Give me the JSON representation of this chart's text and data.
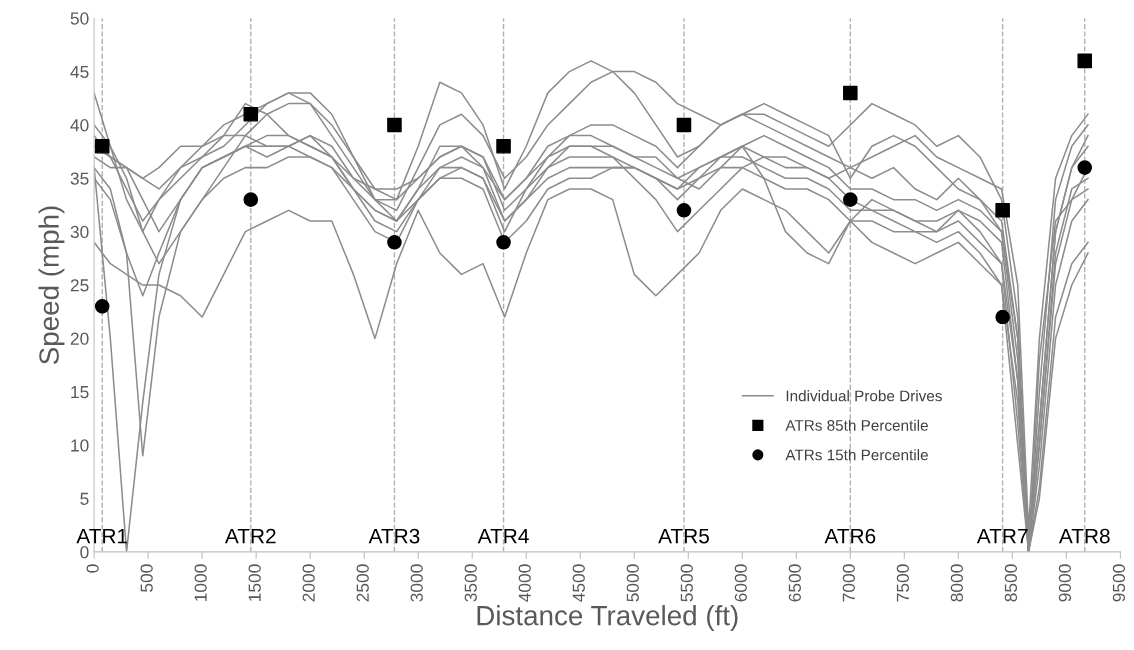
{
  "chart_data": {
    "type": "line",
    "xlabel": "Distance Traveled (ft)",
    "ylabel": "Speed (mph)",
    "x": [
      0,
      150,
      300,
      450,
      600,
      800,
      1000,
      1200,
      1400,
      1600,
      1800,
      2000,
      2200,
      2400,
      2600,
      2800,
      3000,
      3200,
      3400,
      3600,
      3800,
      4000,
      4200,
      4400,
      4600,
      4800,
      5000,
      5200,
      5400,
      5600,
      5800,
      6000,
      6200,
      6400,
      6600,
      6800,
      7000,
      7200,
      7400,
      7600,
      7800,
      8000,
      8200,
      8400,
      8550,
      8650,
      8750,
      8900,
      9050,
      9200
    ],
    "series": [
      {
        "name": "Individual Probe Drives",
        "color": "#8c8c8c",
        "values": [
          43,
          38,
          33,
          30,
          33,
          36,
          38,
          40,
          41,
          42,
          43,
          43,
          41,
          37,
          34,
          33,
          38,
          44,
          43,
          40,
          34,
          38,
          43,
          45,
          46,
          45,
          43,
          40,
          37,
          38,
          40,
          41,
          40,
          39,
          38,
          37,
          36,
          37,
          38,
          39,
          37,
          36,
          35,
          34,
          25,
          2,
          20,
          35,
          39,
          41
        ]
      },
      {
        "color": "#8c8c8c",
        "values": [
          39,
          37,
          36,
          35,
          34,
          36,
          37,
          38,
          40,
          42,
          43,
          42,
          39,
          36,
          33,
          32,
          36,
          40,
          41,
          39,
          35,
          37,
          40,
          42,
          44,
          45,
          45,
          44,
          42,
          41,
          40,
          41,
          41,
          40,
          39,
          38,
          40,
          42,
          41,
          40,
          38,
          39,
          37,
          33,
          22,
          0,
          15,
          33,
          38,
          40
        ]
      },
      {
        "color": "#8c8c8c",
        "values": [
          38,
          37,
          34,
          31,
          33,
          35,
          37,
          39,
          42,
          41,
          39,
          38,
          37,
          35,
          33,
          33,
          35,
          37,
          38,
          37,
          32,
          34,
          37,
          39,
          40,
          40,
          39,
          38,
          36,
          38,
          40,
          41,
          42,
          41,
          40,
          39,
          35,
          38,
          39,
          38,
          36,
          34,
          33,
          31,
          20,
          1,
          12,
          30,
          36,
          38
        ]
      },
      {
        "color": "#8c8c8c",
        "values": [
          37,
          36,
          36,
          35,
          36,
          38,
          38,
          39,
          39,
          38,
          38,
          39,
          37,
          34,
          32,
          31,
          34,
          36,
          36,
          35,
          31,
          33,
          36,
          38,
          38,
          38,
          37,
          37,
          35,
          34,
          36,
          38,
          39,
          38,
          37,
          36,
          34,
          34,
          33,
          33,
          32,
          33,
          32,
          30,
          18,
          0,
          10,
          28,
          34,
          35
        ]
      },
      {
        "color": "#8c8c8c",
        "values": [
          36,
          34,
          28,
          24,
          28,
          33,
          36,
          37,
          38,
          37,
          38,
          39,
          38,
          35,
          34,
          34,
          35,
          37,
          38,
          36,
          33,
          35,
          38,
          39,
          39,
          38,
          37,
          36,
          35,
          36,
          37,
          38,
          37,
          36,
          36,
          35,
          33,
          32,
          32,
          31,
          31,
          32,
          30,
          27,
          16,
          0,
          18,
          31,
          33,
          34
        ]
      },
      {
        "color": "#8c8c8c",
        "values": [
          36,
          20,
          0,
          14,
          26,
          33,
          36,
          37,
          38,
          38,
          38,
          37,
          36,
          33,
          30,
          29,
          33,
          35,
          36,
          35,
          30,
          34,
          36,
          37,
          37,
          37,
          36,
          35,
          34,
          36,
          37,
          37,
          36,
          35,
          35,
          34,
          32,
          32,
          31,
          30,
          30,
          31,
          29,
          27,
          12,
          0,
          8,
          25,
          31,
          33
        ]
      },
      {
        "color": "#8c8c8c",
        "values": [
          35,
          33,
          28,
          9,
          22,
          30,
          33,
          35,
          36,
          36,
          37,
          37,
          36,
          34,
          32,
          31,
          33,
          35,
          35,
          34,
          29,
          31,
          34,
          35,
          35,
          36,
          36,
          35,
          34,
          35,
          36,
          36,
          35,
          34,
          34,
          33,
          31,
          31,
          30,
          30,
          29,
          30,
          28,
          25,
          10,
          0,
          6,
          22,
          27,
          29
        ]
      },
      {
        "color": "#8c8c8c",
        "values": [
          29,
          27,
          26,
          25,
          25,
          24,
          22,
          26,
          30,
          31,
          32,
          31,
          31,
          26,
          20,
          27,
          32,
          28,
          26,
          27,
          22,
          28,
          33,
          34,
          34,
          33,
          26,
          24,
          26,
          28,
          32,
          34,
          33,
          32,
          30,
          28,
          31,
          29,
          28,
          27,
          28,
          29,
          27,
          25,
          14,
          0,
          5,
          20,
          25,
          28
        ]
      },
      {
        "color": "#8c8c8c",
        "values": [
          40,
          38,
          35,
          30,
          27,
          30,
          33,
          36,
          39,
          41,
          42,
          42,
          40,
          37,
          33,
          31,
          34,
          38,
          38,
          37,
          33,
          35,
          37,
          38,
          38,
          37,
          35,
          33,
          30,
          32,
          34,
          36,
          37,
          37,
          36,
          35,
          36,
          35,
          36,
          34,
          33,
          35,
          33,
          30,
          20,
          0,
          12,
          30,
          36,
          39
        ]
      },
      {
        "color": "#8c8c8c",
        "values": [
          38,
          37,
          36,
          33,
          30,
          33,
          36,
          37,
          38,
          39,
          39,
          38,
          37,
          34,
          31,
          30,
          33,
          36,
          37,
          36,
          31,
          33,
          35,
          36,
          36,
          36,
          36,
          35,
          33,
          35,
          37,
          38,
          35,
          30,
          28,
          27,
          31,
          33,
          32,
          31,
          30,
          32,
          31,
          29,
          16,
          0,
          10,
          27,
          33,
          36
        ]
      },
      {
        "name": "ATRs 85th Percentile",
        "type": "scatter",
        "marker": "square",
        "color": "#000000",
        "x": [
          75,
          1450,
          2780,
          3790,
          5460,
          7000,
          8410,
          9170
        ],
        "values": [
          38,
          41,
          40,
          38,
          40,
          43,
          32,
          46
        ]
      },
      {
        "name": "ATRs 15th Percentile",
        "type": "scatter",
        "marker": "circle",
        "color": "#000000",
        "x": [
          75,
          1450,
          2780,
          3790,
          5460,
          7000,
          8410,
          9170
        ],
        "values": [
          23,
          33,
          29,
          29,
          32,
          33,
          22,
          36
        ]
      }
    ],
    "ref_lines": [
      {
        "axis": "x",
        "value": 75,
        "label": "ATR1",
        "color": "#b0b0b0",
        "line_style": "dashed"
      },
      {
        "axis": "x",
        "value": 1450,
        "label": "ATR2",
        "color": "#b0b0b0",
        "line_style": "dashed"
      },
      {
        "axis": "x",
        "value": 2780,
        "label": "ATR3",
        "color": "#b0b0b0",
        "line_style": "dashed"
      },
      {
        "axis": "x",
        "value": 3790,
        "label": "ATR4",
        "color": "#b0b0b0",
        "line_style": "dashed"
      },
      {
        "axis": "x",
        "value": 5460,
        "label": "ATR5",
        "color": "#b0b0b0",
        "line_style": "dashed"
      },
      {
        "axis": "x",
        "value": 7000,
        "label": "ATR6",
        "color": "#b0b0b0",
        "line_style": "dashed"
      },
      {
        "axis": "x",
        "value": 8410,
        "label": "ATR7",
        "color": "#b0b0b0",
        "line_style": "dashed"
      },
      {
        "axis": "x",
        "value": 9170,
        "label": "ATR8",
        "color": "#b0b0b0",
        "line_style": "dashed"
      }
    ],
    "xlim": [
      0,
      9500
    ],
    "xticks": [
      0,
      500,
      1000,
      1500,
      2000,
      2500,
      3000,
      3500,
      4000,
      4500,
      5000,
      5500,
      6000,
      6500,
      7000,
      7500,
      8000,
      8500,
      9000,
      9500
    ],
    "ylim": [
      0,
      50
    ],
    "yticks": [
      0,
      5,
      10,
      15,
      20,
      25,
      30,
      35,
      40,
      45,
      50
    ],
    "grid": false,
    "legend": "lower right",
    "marker": "none",
    "line_style": "solid"
  }
}
